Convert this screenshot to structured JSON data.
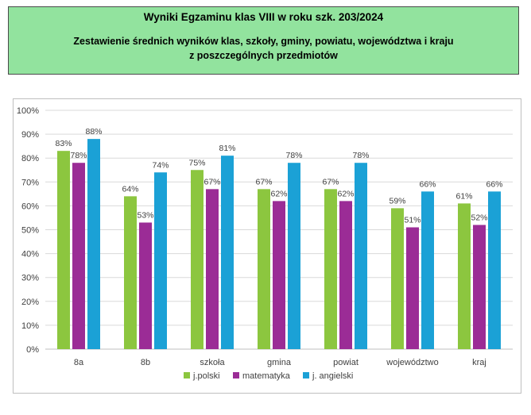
{
  "header": {
    "title": "Wyniki Egzaminu klas VIII w roku szk. 203/2024",
    "subtitle_line1": "Zestawienie średnich wyników klas, szkoły, gminy, powiatu, województwa i kraju",
    "subtitle_line2": "z poszczególnych przedmiotów"
  },
  "chart_data": {
    "type": "bar",
    "title": "",
    "xlabel": "",
    "ylabel": "",
    "ylim": [
      0,
      100
    ],
    "yticks": [
      "0%",
      "10%",
      "20%",
      "30%",
      "40%",
      "50%",
      "60%",
      "70%",
      "80%",
      "90%",
      "100%"
    ],
    "grid": true,
    "legend_position": "bottom",
    "categories": [
      "8a",
      "8b",
      "szkoła",
      "gmina",
      "powiat",
      "województwo",
      "kraj"
    ],
    "series": [
      {
        "name": "j.polski",
        "color": "#8cc63f",
        "values": [
          83,
          64,
          75,
          67,
          67,
          59,
          61
        ],
        "labels": [
          "83%",
          "64%",
          "75%",
          "67%",
          "67%",
          "59%",
          "61%"
        ]
      },
      {
        "name": "matematyka",
        "color": "#9b2c96",
        "values": [
          78,
          53,
          67,
          62,
          62,
          51,
          52
        ],
        "labels": [
          "78%",
          "53%",
          "67%",
          "62%",
          "62%",
          "51%",
          "52%"
        ]
      },
      {
        "name": "j. angielski",
        "color": "#1ba1d6",
        "values": [
          88,
          74,
          81,
          78,
          78,
          66,
          66
        ],
        "labels": [
          "88%",
          "74%",
          "81%",
          "78%",
          "78%",
          "66%",
          "66%"
        ]
      }
    ]
  }
}
